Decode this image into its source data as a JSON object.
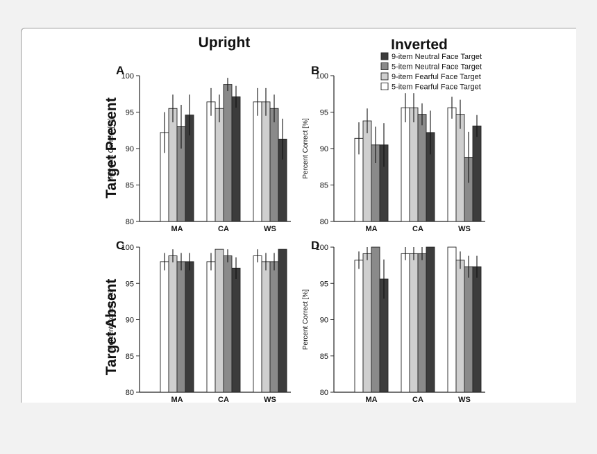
{
  "figure": {
    "col_titles": [
      "Upright",
      "Inverted"
    ],
    "row_titles": [
      "Target Present",
      "Target Absent"
    ],
    "colors": {
      "5-item Fearful Face Target": "#ffffff",
      "9-item Fearful Face Target": "#cfcfcf",
      "5-item Neutral Face Target": "#8a8a8a",
      "9-item Neutral Face Target": "#3c3c3c",
      "stroke": "#222222"
    }
  },
  "chart_data": [
    {
      "type": "bar",
      "panel": "A",
      "title": "",
      "xlabel": "",
      "ylabel": "Percent Correct [%]",
      "ylim": [
        80,
        100
      ],
      "yticks": [
        80,
        85,
        90,
        95,
        100
      ],
      "categories": [
        "MA",
        "CA",
        "WS"
      ],
      "series": [
        {
          "name": "5-item Fearful Face Target",
          "values": [
            92.2,
            96.4,
            96.4
          ],
          "err": [
            2.8,
            1.9,
            1.9
          ]
        },
        {
          "name": "9-item Fearful Face Target",
          "values": [
            95.5,
            95.5,
            96.4
          ],
          "err": [
            1.9,
            1.9,
            1.9
          ]
        },
        {
          "name": "5-item Neutral Face Target",
          "values": [
            93.0,
            98.8,
            95.5
          ],
          "err": [
            3.0,
            0.9,
            1.9
          ]
        },
        {
          "name": "9-item Neutral Face Target",
          "values": [
            94.6,
            97.1,
            91.3
          ],
          "err": [
            2.8,
            1.5,
            2.8
          ]
        }
      ]
    },
    {
      "type": "bar",
      "panel": "B",
      "title": "",
      "xlabel": "",
      "ylabel": "Percent Correct [%]",
      "ylim": [
        80,
        100
      ],
      "yticks": [
        80,
        85,
        90,
        95,
        100
      ],
      "categories": [
        "MA",
        "CA",
        "WS"
      ],
      "legend": [
        "9-item Neutral Face Target",
        "5-item Neutral Face Target",
        "9-item Fearful Face Target",
        "5-item Fearful Face Target"
      ],
      "series": [
        {
          "name": "5-item Fearful Face Target",
          "values": [
            91.4,
            95.6,
            95.6
          ],
          "err": [
            2.2,
            2.0,
            1.5
          ]
        },
        {
          "name": "9-item Fearful Face Target",
          "values": [
            93.8,
            95.6,
            94.7
          ],
          "err": [
            1.7,
            2.0,
            2.0
          ]
        },
        {
          "name": "5-item Neutral Face Target",
          "values": [
            90.5,
            94.7,
            88.8
          ],
          "err": [
            2.5,
            1.5,
            3.5
          ]
        },
        {
          "name": "9-item Neutral Face Target",
          "values": [
            90.5,
            92.2,
            93.1
          ],
          "err": [
            3.0,
            3.0,
            1.5
          ]
        }
      ]
    },
    {
      "type": "bar",
      "panel": "C",
      "title": "",
      "xlabel": "",
      "ylabel": "Percent Correct [%]",
      "ylim": [
        80,
        100
      ],
      "yticks": [
        80,
        85,
        90,
        95,
        100
      ],
      "categories": [
        "MA",
        "CA",
        "WS"
      ],
      "series": [
        {
          "name": "5-item Fearful Face Target",
          "values": [
            98.0,
            98.0,
            98.8
          ],
          "err": [
            1.2,
            1.2,
            0.9
          ]
        },
        {
          "name": "9-item Fearful Face Target",
          "values": [
            98.8,
            99.7,
            98.0
          ],
          "err": [
            0.9,
            0.0,
            1.2
          ]
        },
        {
          "name": "5-item Neutral Face Target",
          "values": [
            98.0,
            98.8,
            98.0
          ],
          "err": [
            1.2,
            0.9,
            1.2
          ]
        },
        {
          "name": "9-item Neutral Face Target",
          "values": [
            98.0,
            97.1,
            99.7
          ],
          "err": [
            1.2,
            1.5,
            0.0
          ]
        }
      ]
    },
    {
      "type": "bar",
      "panel": "D",
      "title": "",
      "xlabel": "",
      "ylabel": "Percent Correct [%]",
      "ylim": [
        80,
        100
      ],
      "yticks": [
        80,
        85,
        90,
        95,
        100
      ],
      "categories": [
        "MA",
        "CA",
        "WS"
      ],
      "series": [
        {
          "name": "5-item Fearful Face Target",
          "values": [
            98.2,
            99.1,
            100.0
          ],
          "err": [
            1.2,
            0.9,
            0.0
          ]
        },
        {
          "name": "9-item Fearful Face Target",
          "values": [
            99.1,
            99.1,
            98.2
          ],
          "err": [
            0.9,
            0.9,
            1.2
          ]
        },
        {
          "name": "5-item Neutral Face Target",
          "values": [
            100.0,
            99.1,
            97.3
          ],
          "err": [
            0.0,
            0.9,
            1.5
          ]
        },
        {
          "name": "9-item Neutral Face Target",
          "values": [
            95.6,
            100.0,
            97.3
          ],
          "err": [
            2.7,
            0.0,
            1.5
          ]
        }
      ]
    }
  ]
}
